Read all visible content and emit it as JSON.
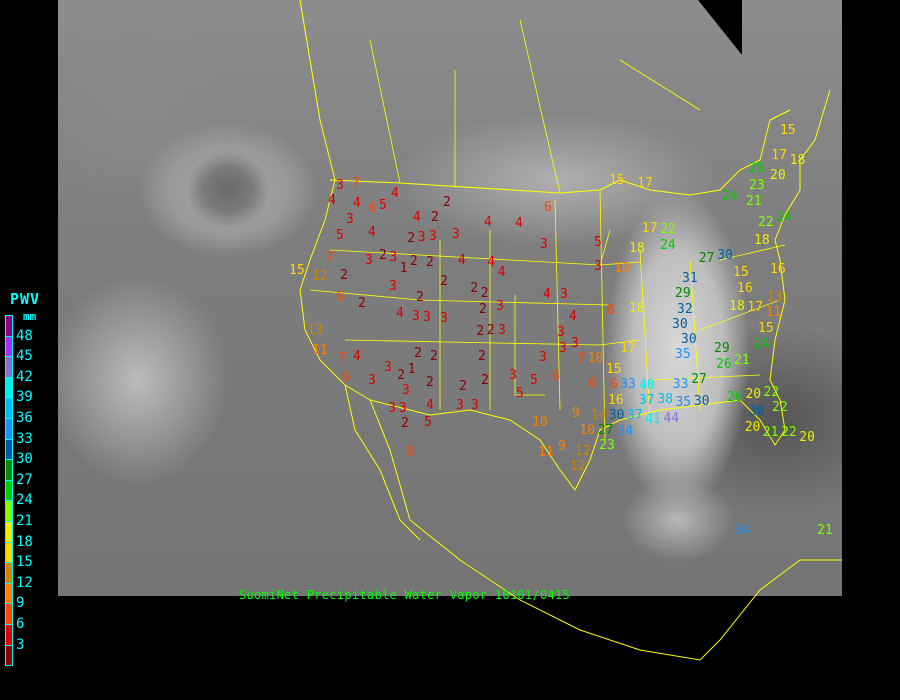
{
  "legend": {
    "title": "PWV",
    "unit": "mm",
    "labels": [
      "48",
      "45",
      "42",
      "39",
      "36",
      "33",
      "30",
      "27",
      "24",
      "21",
      "18",
      "15",
      "12",
      "9",
      "6",
      "3"
    ],
    "colors": [
      "#8b008b",
      "#9b30ff",
      "#8470d0",
      "#00eeee",
      "#00bfee",
      "#1e90ff",
      "#005f9f",
      "#008b00",
      "#00cd00",
      "#7fff00",
      "#eeee00",
      "#ffd700",
      "#cd8500",
      "#ff8000",
      "#ff4500",
      "#dd0000",
      "#8b0000"
    ]
  },
  "caption": "SuomiNet Precipitable Water Vapor 10101/0415",
  "map": {
    "boundary_color": "#ffff00",
    "station_values": [
      7,
      3,
      4,
      4,
      3,
      6,
      5,
      4,
      4,
      2,
      2,
      4,
      4,
      6,
      5,
      4,
      2,
      3,
      3,
      3,
      3,
      5,
      3,
      7,
      2,
      3,
      2,
      3,
      2,
      2,
      4,
      4,
      4,
      12,
      15,
      6,
      2,
      3,
      1,
      2,
      2,
      2,
      2,
      2,
      3,
      3,
      4,
      3,
      3,
      2,
      2,
      3,
      4,
      3,
      4,
      3,
      3,
      3,
      3,
      2,
      2,
      1,
      3,
      2,
      2,
      2,
      2,
      2,
      3,
      5,
      5,
      6,
      3,
      3,
      4,
      7,
      3,
      3,
      4,
      3,
      3,
      2,
      5,
      8,
      10,
      9,
      10,
      11,
      9,
      12,
      12,
      6,
      6,
      10,
      7,
      17,
      8,
      18,
      10,
      18,
      15,
      17,
      31,
      32,
      29,
      30,
      30,
      35,
      29,
      26,
      21,
      24,
      30,
      27,
      22,
      17,
      18,
      15,
      16,
      18,
      17,
      13,
      11,
      15,
      33,
      27,
      38,
      35,
      30,
      26,
      20,
      22,
      22,
      20,
      30,
      21,
      22,
      20,
      33,
      40,
      37,
      37,
      30,
      41,
      44,
      27,
      34,
      23,
      14,
      16,
      15,
      24,
      21,
      25,
      23,
      20,
      15,
      17,
      18,
      24,
      22,
      16,
      34,
      21,
      24,
      13,
      11,
      6
    ]
  }
}
